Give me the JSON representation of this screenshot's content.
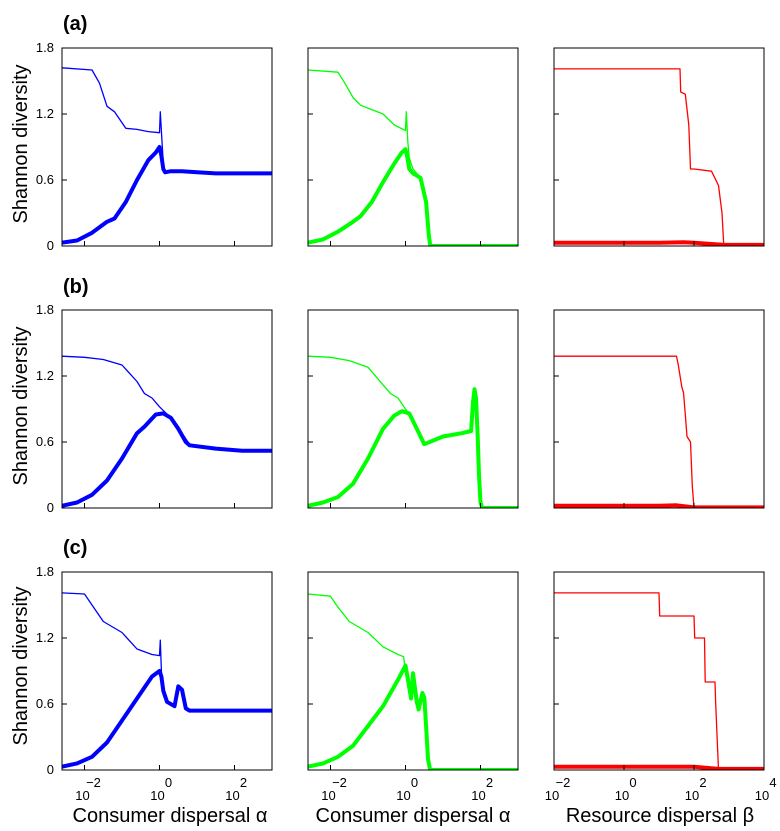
{
  "figure": {
    "row_labels": [
      "(a)",
      "(b)",
      "(c)"
    ],
    "ylabel": "Shannon diversity",
    "xlabels": [
      "Consumer dispersal α",
      "Consumer dispersal α",
      "Resource dispersal β"
    ],
    "colors": {
      "blue": "#0000ff",
      "green": "#00ff00",
      "red": "#ff0000"
    }
  },
  "chart_data": [
    {
      "type": "line",
      "panel": "a1",
      "color": "#0000ff",
      "ylim": [
        0,
        1.8
      ],
      "yticks": [
        "0",
        "0.6",
        "1.2",
        "1.8"
      ],
      "xlim": [
        -2.6,
        3.0
      ],
      "xscale": "log10",
      "series": [
        {
          "width": "thin",
          "x": [
            -2.6,
            -1.8,
            -1.6,
            -1.4,
            -1.2,
            -0.9,
            -0.6,
            -0.3,
            0.0,
            0.02,
            0.06,
            0.1,
            0.15,
            0.4,
            0.8,
            1.5,
            2.2,
            3.0
          ],
          "y": [
            1.62,
            1.6,
            1.48,
            1.27,
            1.22,
            1.07,
            1.06,
            1.04,
            1.03,
            1.22,
            0.98,
            0.75,
            0.67,
            0.67,
            0.67,
            0.66,
            0.66,
            0.66
          ]
        },
        {
          "width": "thick",
          "x": [
            -2.6,
            -2.2,
            -1.8,
            -1.4,
            -1.2,
            -0.9,
            -0.6,
            -0.3,
            -0.1,
            0.0,
            0.05,
            0.1,
            0.15,
            0.3,
            0.6,
            1.0,
            1.5,
            2.2,
            3.0
          ],
          "y": [
            0.03,
            0.05,
            0.12,
            0.22,
            0.25,
            0.4,
            0.6,
            0.78,
            0.85,
            0.9,
            0.82,
            0.7,
            0.67,
            0.68,
            0.68,
            0.67,
            0.66,
            0.66,
            0.66
          ]
        }
      ]
    },
    {
      "type": "line",
      "panel": "a2",
      "color": "#00ff00",
      "ylim": [
        0,
        1.8
      ],
      "xlim": [
        -2.6,
        3.0
      ],
      "xscale": "log10",
      "series": [
        {
          "width": "thin",
          "x": [
            -2.6,
            -1.8,
            -1.6,
            -1.4,
            -1.2,
            -0.9,
            -0.6,
            -0.3,
            0.0,
            0.02,
            0.06,
            0.1,
            0.2,
            0.4,
            0.55,
            0.62,
            0.66
          ],
          "y": [
            1.6,
            1.58,
            1.47,
            1.35,
            1.28,
            1.24,
            1.2,
            1.1,
            1.05,
            1.22,
            0.95,
            0.8,
            0.7,
            0.62,
            0.4,
            0.1,
            0.0
          ]
        },
        {
          "width": "thick",
          "x": [
            -2.6,
            -2.2,
            -1.8,
            -1.4,
            -1.2,
            -0.9,
            -0.6,
            -0.3,
            -0.1,
            0.0,
            0.05,
            0.1,
            0.2,
            0.4,
            0.55,
            0.62,
            0.66,
            1.0,
            2.0,
            3.0
          ],
          "y": [
            0.03,
            0.06,
            0.13,
            0.22,
            0.27,
            0.4,
            0.58,
            0.75,
            0.85,
            0.88,
            0.8,
            0.7,
            0.66,
            0.62,
            0.4,
            0.1,
            0.0,
            0.0,
            0.0,
            0.0
          ]
        }
      ]
    },
    {
      "type": "line",
      "panel": "a3",
      "color": "#ff0000",
      "ylim": [
        0,
        1.8
      ],
      "xlim": [
        -2.0,
        4.0
      ],
      "xscale": "log10",
      "series": [
        {
          "width": "thin",
          "x": [
            -2.0,
            1.6,
            1.62,
            1.75,
            1.78,
            1.85,
            1.9,
            2.0,
            2.5,
            2.7,
            2.8,
            2.85,
            4.0
          ],
          "y": [
            1.61,
            1.61,
            1.4,
            1.38,
            1.3,
            1.1,
            0.7,
            0.7,
            0.68,
            0.55,
            0.3,
            0.0,
            0.0
          ]
        },
        {
          "width": "thick",
          "x": [
            -2.0,
            1.0,
            1.7,
            2.0,
            2.85,
            4.0
          ],
          "y": [
            0.03,
            0.03,
            0.035,
            0.03,
            0.01,
            0.01
          ]
        }
      ]
    },
    {
      "type": "line",
      "panel": "b1",
      "color": "#0000ff",
      "ylim": [
        0,
        1.8
      ],
      "xlim": [
        -2.6,
        3.0
      ],
      "xscale": "log10",
      "series": [
        {
          "width": "thin",
          "x": [
            -2.6,
            -2.0,
            -1.5,
            -1.0,
            -0.6,
            -0.4,
            -0.2,
            0.0,
            0.3,
            0.6,
            0.8,
            1.5,
            2.2,
            3.0
          ],
          "y": [
            1.38,
            1.37,
            1.35,
            1.3,
            1.15,
            1.04,
            1.0,
            0.92,
            0.82,
            0.68,
            0.58,
            0.54,
            0.52,
            0.52
          ]
        },
        {
          "width": "thick",
          "x": [
            -2.6,
            -2.2,
            -1.8,
            -1.4,
            -1.0,
            -0.6,
            -0.4,
            -0.1,
            0.1,
            0.3,
            0.5,
            0.7,
            0.8,
            1.5,
            2.2,
            3.0
          ],
          "y": [
            0.02,
            0.05,
            0.12,
            0.25,
            0.45,
            0.68,
            0.74,
            0.85,
            0.86,
            0.82,
            0.72,
            0.6,
            0.57,
            0.54,
            0.52,
            0.52
          ]
        }
      ]
    },
    {
      "type": "line",
      "panel": "b2",
      "color": "#00ff00",
      "ylim": [
        0,
        1.8
      ],
      "xlim": [
        -2.6,
        3.0
      ],
      "xscale": "log10",
      "series": [
        {
          "width": "thin",
          "x": [
            -2.6,
            -2.0,
            -1.5,
            -1.0,
            -0.6,
            -0.4,
            -0.2,
            0.0,
            0.3,
            0.5
          ],
          "y": [
            1.38,
            1.37,
            1.34,
            1.28,
            1.12,
            1.04,
            1.0,
            0.9,
            0.72,
            0.6
          ]
        },
        {
          "width": "thick",
          "x": [
            -2.6,
            -2.2,
            -1.8,
            -1.4,
            -1.0,
            -0.6,
            -0.3,
            -0.1,
            0.1,
            0.3,
            0.5,
            1.0,
            1.5,
            1.75,
            1.8,
            1.84,
            1.88,
            1.92,
            1.96,
            2.0,
            2.05,
            2.2,
            3.0
          ],
          "y": [
            0.02,
            0.05,
            0.1,
            0.22,
            0.45,
            0.72,
            0.84,
            0.88,
            0.86,
            0.72,
            0.58,
            0.65,
            0.68,
            0.7,
            0.96,
            1.08,
            1.0,
            0.7,
            0.3,
            0.05,
            0.0,
            0.0,
            0.0
          ]
        }
      ]
    },
    {
      "type": "line",
      "panel": "b3",
      "color": "#ff0000",
      "ylim": [
        0,
        1.8
      ],
      "xlim": [
        -2.0,
        4.0
      ],
      "xscale": "log10",
      "series": [
        {
          "width": "thin",
          "x": [
            -2.0,
            1.5,
            1.55,
            1.65,
            1.7,
            1.75,
            1.8,
            1.9,
            1.95,
            2.0,
            4.0
          ],
          "y": [
            1.38,
            1.38,
            1.3,
            1.1,
            1.05,
            0.85,
            0.65,
            0.6,
            0.2,
            0.0,
            0.0
          ]
        },
        {
          "width": "thick",
          "x": [
            -2.0,
            1.0,
            1.5,
            2.0,
            4.0
          ],
          "y": [
            0.02,
            0.02,
            0.025,
            0.005,
            0.005
          ]
        }
      ]
    },
    {
      "type": "line",
      "panel": "c1",
      "color": "#0000ff",
      "ylim": [
        0,
        1.8
      ],
      "xlim": [
        -2.6,
        3.0
      ],
      "xscale": "log10",
      "series": [
        {
          "width": "thin",
          "x": [
            -2.6,
            -2.0,
            -1.8,
            -1.5,
            -1.0,
            -0.6,
            -0.2,
            0.0,
            0.02,
            0.05,
            0.1,
            0.2,
            0.4,
            0.5,
            0.6,
            0.7,
            0.8,
            1.0,
            2.0,
            3.0
          ],
          "y": [
            1.61,
            1.6,
            1.5,
            1.35,
            1.25,
            1.1,
            1.05,
            1.04,
            1.18,
            0.9,
            0.7,
            0.62,
            0.58,
            0.75,
            0.72,
            0.55,
            0.54,
            0.54,
            0.54,
            0.54
          ]
        },
        {
          "width": "thick",
          "x": [
            -2.6,
            -2.2,
            -1.8,
            -1.4,
            -1.0,
            -0.6,
            -0.2,
            0.0,
            0.05,
            0.1,
            0.2,
            0.4,
            0.5,
            0.6,
            0.7,
            0.8,
            1.0,
            2.0,
            3.0
          ],
          "y": [
            0.03,
            0.06,
            0.12,
            0.25,
            0.45,
            0.65,
            0.85,
            0.9,
            0.85,
            0.72,
            0.62,
            0.58,
            0.76,
            0.73,
            0.56,
            0.54,
            0.54,
            0.54,
            0.54
          ]
        }
      ]
    },
    {
      "type": "line",
      "panel": "c2",
      "color": "#00ff00",
      "ylim": [
        0,
        1.8
      ],
      "xlim": [
        -2.6,
        3.0
      ],
      "xscale": "log10",
      "series": [
        {
          "width": "thin",
          "x": [
            -2.6,
            -2.0,
            -1.8,
            -1.5,
            -1.0,
            -0.6,
            -0.2,
            -0.05,
            0.0,
            0.05,
            0.15,
            0.2,
            0.3,
            0.35,
            0.45,
            0.5,
            0.55,
            0.6,
            0.65,
            0.68
          ],
          "y": [
            1.6,
            1.58,
            1.48,
            1.35,
            1.25,
            1.12,
            1.05,
            1.03,
            0.9,
            0.8,
            0.65,
            0.85,
            0.62,
            0.55,
            0.7,
            0.66,
            0.4,
            0.1,
            0.01,
            0.0
          ]
        },
        {
          "width": "thick",
          "x": [
            -2.6,
            -2.2,
            -1.8,
            -1.4,
            -1.0,
            -0.6,
            -0.2,
            0.0,
            0.05,
            0.15,
            0.2,
            0.3,
            0.35,
            0.45,
            0.5,
            0.55,
            0.6,
            0.65,
            0.68,
            1.0,
            2.0,
            3.0
          ],
          "y": [
            0.03,
            0.06,
            0.12,
            0.22,
            0.4,
            0.58,
            0.82,
            0.95,
            0.85,
            0.65,
            0.88,
            0.62,
            0.55,
            0.7,
            0.66,
            0.4,
            0.1,
            0.01,
            0.0,
            0.0,
            0.0,
            0.0
          ]
        }
      ]
    },
    {
      "type": "line",
      "panel": "c3",
      "color": "#ff0000",
      "ylim": [
        0,
        1.8
      ],
      "xlim": [
        -2.0,
        4.0
      ],
      "xscale": "log10",
      "series": [
        {
          "width": "thin",
          "x": [
            -2.0,
            1.0,
            1.02,
            2.0,
            2.02,
            2.3,
            2.32,
            2.6,
            2.62,
            2.7,
            4.0
          ],
          "y": [
            1.61,
            1.61,
            1.4,
            1.4,
            1.2,
            1.2,
            0.8,
            0.8,
            0.6,
            0.0,
            0.0
          ]
        },
        {
          "width": "thick",
          "x": [
            -2.0,
            1.0,
            2.0,
            2.7,
            4.0
          ],
          "y": [
            0.03,
            0.03,
            0.03,
            0.01,
            0.01
          ]
        }
      ]
    }
  ],
  "xticks": {
    "consumer": [
      {
        "base": "10",
        "exp": "−2",
        "v": -2
      },
      {
        "base": "10",
        "exp": "0",
        "v": 0
      },
      {
        "base": "10",
        "exp": "2",
        "v": 2
      }
    ],
    "resource": [
      {
        "base": "10",
        "exp": "−2",
        "v": -2
      },
      {
        "base": "10",
        "exp": "0",
        "v": 0
      },
      {
        "base": "10",
        "exp": "2",
        "v": 2
      },
      {
        "base": "10",
        "exp": "4",
        "v": 4
      }
    ]
  }
}
